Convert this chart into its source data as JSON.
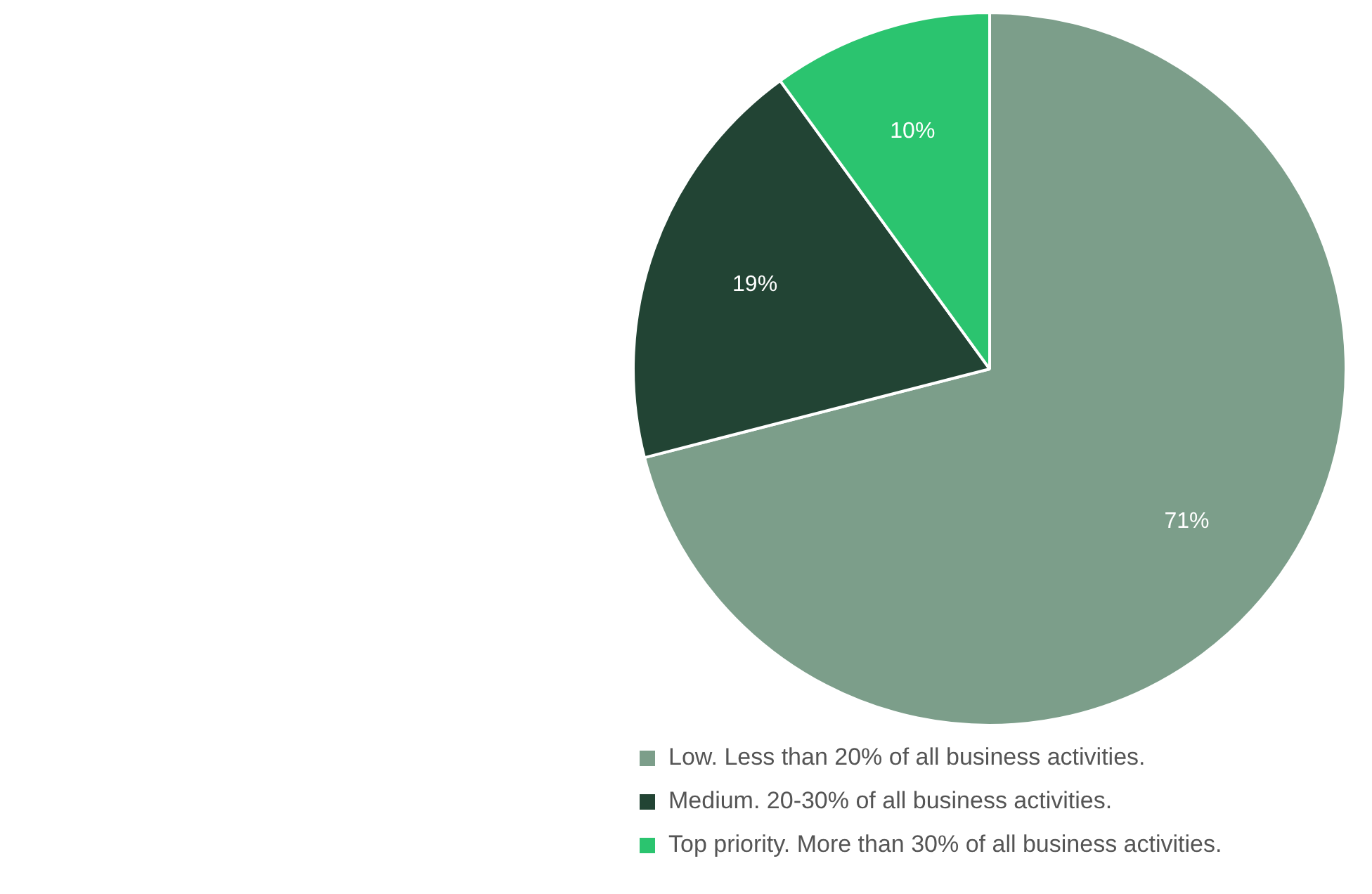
{
  "chart_data": {
    "type": "pie",
    "categories": [
      "Low. Less than 20% of all business activities.",
      "Medium. 20-30% of all business activities.",
      "Top priority. More than 30% of all business activities."
    ],
    "values": [
      71,
      19,
      10
    ],
    "colors": [
      "#7c9e8a",
      "#224434",
      "#2bc46f"
    ],
    "value_labels": [
      "71%",
      "19%",
      "10%"
    ],
    "legend": "bottom"
  }
}
